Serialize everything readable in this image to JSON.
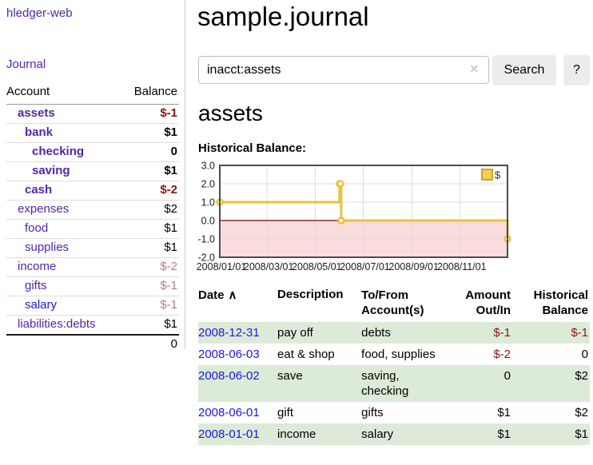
{
  "app": {
    "title": "hledger-web"
  },
  "colors": {
    "link_purple": "#5226a5",
    "link_blue": "#1d16e0",
    "negative_dark_red": "#8f1310",
    "negative_soft_red": "#c3787d",
    "row_stripe_green": "#dcebd8",
    "chart_line_gold": "#e9c13f"
  },
  "sidebar": {
    "journal_label": "Journal",
    "accounts_table": {
      "headers": {
        "account": "Account",
        "balance": "Balance"
      },
      "rows": [
        {
          "name": "assets",
          "balance": "$-1"
        },
        {
          "name": "bank",
          "balance": "$1"
        },
        {
          "name": "checking",
          "balance": "0"
        },
        {
          "name": "saving",
          "balance": "$1"
        },
        {
          "name": "cash",
          "balance": "$-2"
        },
        {
          "name": "expenses",
          "balance": "$2"
        },
        {
          "name": "food",
          "balance": "$1"
        },
        {
          "name": "supplies",
          "balance": "$1"
        },
        {
          "name": "income",
          "balance": "$-2"
        },
        {
          "name": "gifts",
          "balance": "$-1"
        },
        {
          "name": "salary",
          "balance": "$-1"
        },
        {
          "name": "liabilities:debts",
          "balance": "$1"
        }
      ],
      "total": "0"
    }
  },
  "header": {
    "title": "sample.journal"
  },
  "search": {
    "value": "inacct:assets",
    "clear_icon": "×",
    "button_label": "Search",
    "help_label": "?"
  },
  "account_page": {
    "title": "assets",
    "chart_label": "Historical Balance:"
  },
  "chart_data": {
    "type": "line",
    "style": "step",
    "title": "Historical Balance:",
    "series": [
      {
        "name": "$",
        "color": "#e9c13f",
        "dates": [
          "2008-01-01",
          "2008-06-01",
          "2008-06-02",
          "2008-06-03",
          "2008-12-31"
        ],
        "x_days": [
          0,
          152,
          153,
          154,
          365
        ],
        "values": [
          1,
          2,
          2,
          0,
          -1
        ]
      }
    ],
    "x_range_days": [
      0,
      365
    ],
    "xticks": [
      {
        "label": "2008/01/01",
        "day": 0
      },
      {
        "label": "2008/03/01",
        "day": 60
      },
      {
        "label": "2008/05/01",
        "day": 121
      },
      {
        "label": "2008/07/01",
        "day": 182
      },
      {
        "label": "2008/09/01",
        "day": 244
      },
      {
        "label": "2008/11/01",
        "day": 305
      }
    ],
    "ylim": [
      -2,
      3
    ],
    "yticks": [
      -2,
      -1,
      0,
      1,
      2,
      3
    ],
    "ytick_labels": [
      "-2.0",
      "-1.0",
      "0.0",
      "1.0",
      "2.0",
      "3.0"
    ],
    "grid": true,
    "legend": {
      "position": "top-right",
      "label": "$",
      "color": "#e9c13f"
    },
    "negative_region_color": "#fadcdc",
    "zero_line_color": "#7f0000"
  },
  "register": {
    "headers": {
      "date": "Date",
      "description": "Description",
      "tofrom_line1": "To/From",
      "tofrom_line2": "Account(s)",
      "amount_line1": "Amount",
      "amount_line2": "Out/In",
      "balance_line1": "Historical",
      "balance_line2": "Balance"
    },
    "sort_icon": "∧",
    "rows": [
      {
        "date": "2008-12-31",
        "description": "pay off",
        "accounts": "debts",
        "amount": "$-1",
        "balance": "$-1"
      },
      {
        "date": "2008-06-03",
        "description": "eat & shop",
        "accounts": "food, supplies",
        "amount": "$-2",
        "balance": "0"
      },
      {
        "date": "2008-06-02",
        "description": "save",
        "accounts": "saving, checking",
        "amount": "0",
        "balance": "$2"
      },
      {
        "date": "2008-06-01",
        "description": "gift",
        "accounts": "gifts",
        "amount": "$1",
        "balance": "$2"
      },
      {
        "date": "2008-01-01",
        "description": "income",
        "accounts": "salary",
        "amount": "$1",
        "balance": "$1"
      }
    ]
  }
}
